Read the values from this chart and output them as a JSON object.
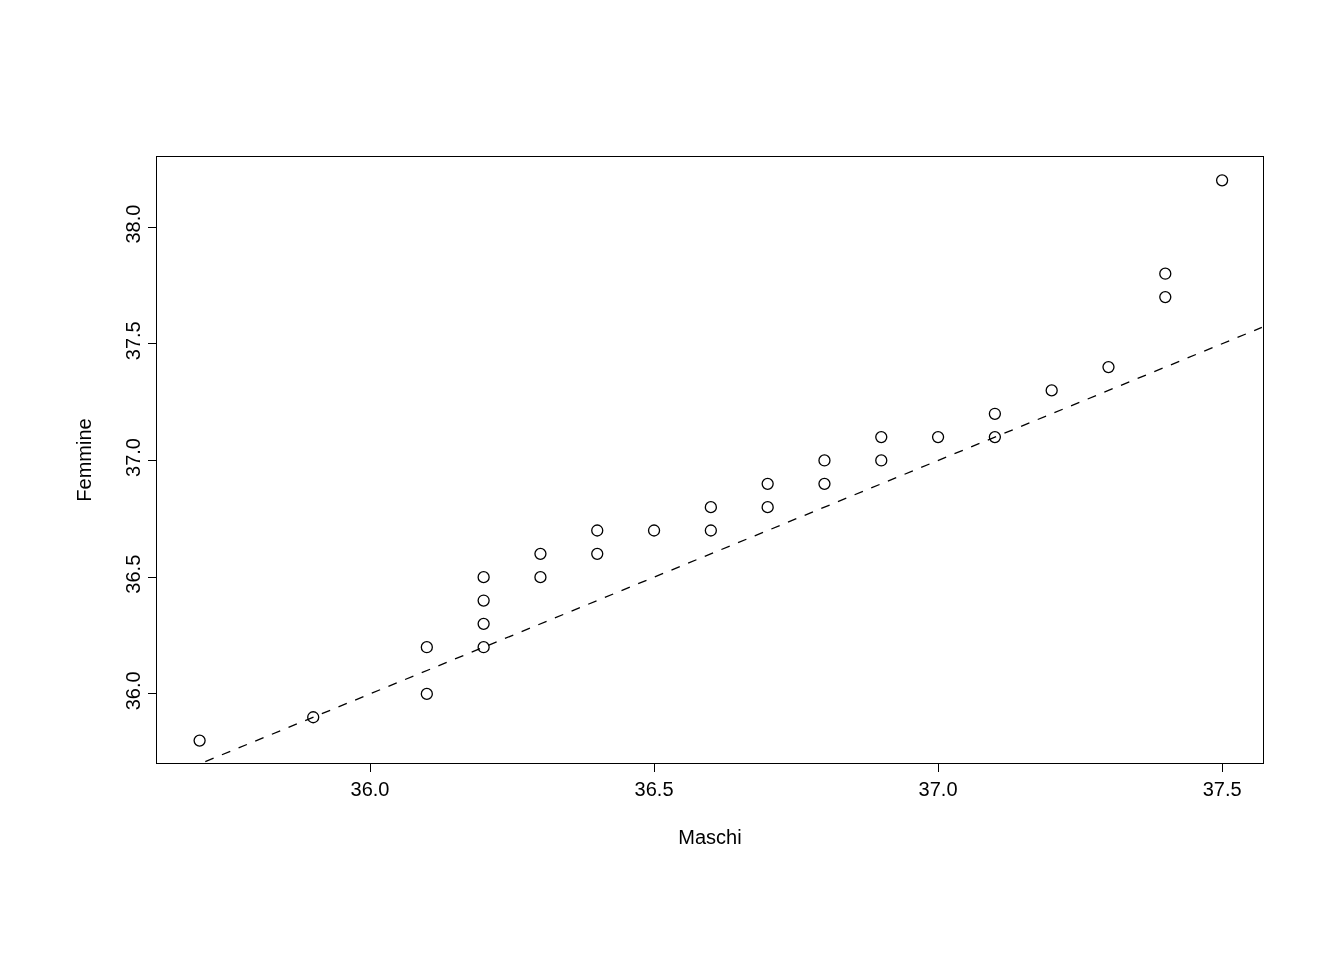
{
  "chart_data": {
    "type": "scatter",
    "xlabel": "Maschi",
    "ylabel": "Femmine",
    "marker": "circle",
    "xlim": [
      35.625,
      37.572
    ],
    "ylim": [
      35.704,
      38.3
    ],
    "xticks": [
      {
        "value": 36,
        "label": "36.0"
      },
      {
        "value": 36.5,
        "label": "36.5"
      },
      {
        "value": 37,
        "label": "37.0"
      },
      {
        "value": 37.5,
        "label": "37.5"
      }
    ],
    "yticks": [
      {
        "value": 36,
        "label": "36.0"
      },
      {
        "value": 36.5,
        "label": "36.5"
      },
      {
        "value": 37,
        "label": "37.0"
      },
      {
        "value": 37.5,
        "label": "37.5"
      },
      {
        "value": 38,
        "label": "38.0"
      }
    ],
    "series": [
      {
        "color": "#000000",
        "x": [
          35.7,
          35.9,
          36.1,
          36.1,
          36.2,
          36.2,
          36.2,
          36.2,
          36.3,
          36.3,
          36.4,
          36.4,
          36.5,
          36.6,
          36.6,
          36.7,
          36.7,
          36.8,
          36.8,
          36.9,
          36.9,
          37.0,
          37.1,
          37.1,
          37.2,
          37.3,
          37.4,
          37.4,
          37.5
        ],
        "values": [
          35.8,
          35.9,
          36.0,
          36.2,
          36.2,
          36.3,
          36.4,
          36.5,
          36.5,
          36.6,
          36.6,
          36.7,
          36.7,
          36.7,
          36.8,
          36.8,
          36.9,
          36.9,
          37.0,
          37.0,
          37.1,
          37.1,
          37.1,
          37.2,
          37.3,
          37.4,
          37.7,
          37.8,
          38.2
        ]
      },
      {
        "type": "line",
        "line_style": "dashed",
        "marker": "none",
        "color": "#000000",
        "x": [
          35.71,
          37.57
        ],
        "values": [
          35.71,
          37.57
        ]
      }
    ]
  }
}
